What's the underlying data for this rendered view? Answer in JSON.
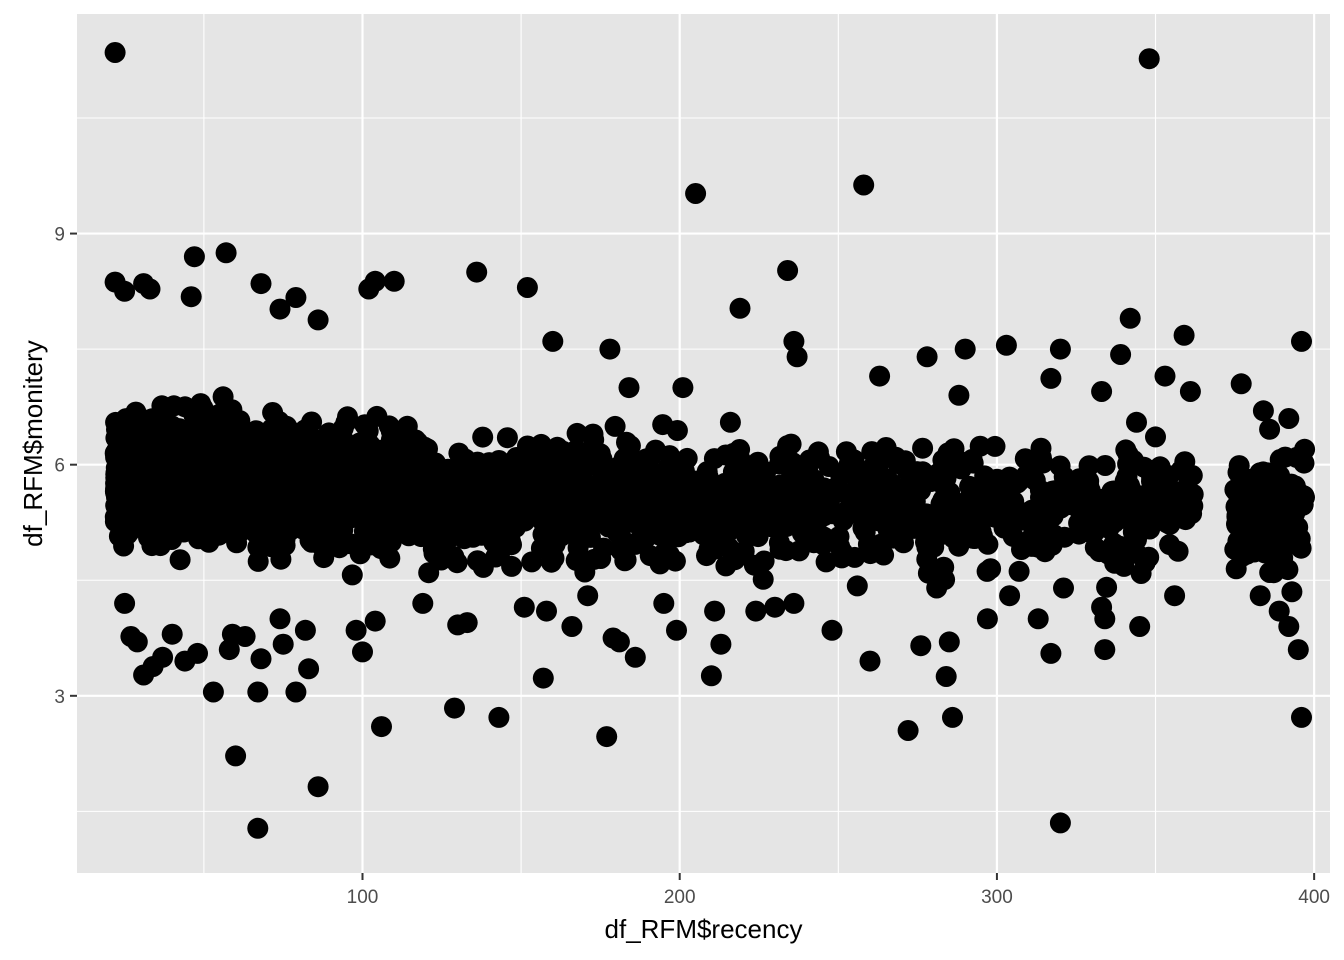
{
  "chart_data": {
    "type": "scatter",
    "title": "",
    "xlabel": "df_RFM$recency",
    "ylabel": "df_RFM$monitery",
    "xlim": [
      10,
      405
    ],
    "ylim": [
      0.7,
      11.85
    ],
    "x_ticks": [
      100,
      200,
      300,
      400
    ],
    "y_ticks": [
      3,
      6,
      9
    ],
    "x_minor": [
      50,
      150,
      250,
      350
    ],
    "y_minor": [
      1.5,
      4.5,
      7.5,
      10.5
    ],
    "x_tick_labels": [
      "100",
      "200",
      "300",
      "400"
    ],
    "y_tick_labels": [
      "3",
      "6",
      "9"
    ],
    "grid": true,
    "point_color": "#000000",
    "panel_color": "#e5e5e5",
    "grid_color": "#ffffff",
    "series": [
      {
        "points": [
          [
            22,
            11.35
          ],
          [
            348,
            11.27
          ],
          [
            258,
            9.63
          ],
          [
            205,
            9.52
          ],
          [
            57,
            8.75
          ],
          [
            47,
            8.7
          ],
          [
            234,
            8.52
          ],
          [
            136,
            8.5
          ],
          [
            22,
            8.37
          ],
          [
            31,
            8.35
          ],
          [
            68,
            8.35
          ],
          [
            110,
            8.38
          ],
          [
            104,
            8.38
          ],
          [
            152,
            8.3
          ],
          [
            102,
            8.28
          ],
          [
            25,
            8.25
          ],
          [
            33,
            8.28
          ],
          [
            46,
            8.18
          ],
          [
            79,
            8.17
          ],
          [
            74,
            8.02
          ],
          [
            219,
            8.03
          ],
          [
            86,
            7.88
          ],
          [
            342,
            7.9
          ],
          [
            359,
            7.68
          ],
          [
            236,
            7.6
          ],
          [
            303,
            7.55
          ],
          [
            396,
            7.6
          ],
          [
            290,
            7.5
          ],
          [
            320,
            7.5
          ],
          [
            178,
            7.5
          ],
          [
            160,
            7.6
          ],
          [
            237,
            7.4
          ],
          [
            278,
            7.4
          ],
          [
            339,
            7.43
          ],
          [
            377,
            7.05
          ],
          [
            353,
            7.15
          ],
          [
            317,
            7.12
          ],
          [
            263,
            7.15
          ],
          [
            201,
            7.0
          ],
          [
            184,
            7.0
          ],
          [
            288,
            6.9
          ],
          [
            361,
            6.95
          ],
          [
            392,
            6.6
          ],
          [
            384,
            6.7
          ],
          [
            333,
            6.95
          ],
          [
            344,
            6.55
          ],
          [
            397,
            6.2
          ],
          [
            376,
            5.9
          ],
          [
            381,
            5.4
          ],
          [
            389,
            5.1
          ],
          [
            395,
            5.5
          ],
          [
            386,
            4.6
          ],
          [
            393,
            4.35
          ],
          [
            375,
            4.9
          ],
          [
            392,
            3.9
          ],
          [
            395,
            3.6
          ],
          [
            396,
            2.72
          ],
          [
            389,
            4.1
          ],
          [
            383,
            4.3
          ],
          [
            356,
            4.3
          ],
          [
            345,
            3.9
          ],
          [
            334,
            3.6
          ],
          [
            334,
            4.0
          ],
          [
            333,
            4.15
          ],
          [
            321,
            4.4
          ],
          [
            317,
            3.55
          ],
          [
            313,
            4.0
          ],
          [
            297,
            4.0
          ],
          [
            304,
            4.3
          ],
          [
            298,
            4.65
          ],
          [
            285,
            3.7
          ],
          [
            284,
            3.25
          ],
          [
            286,
            2.72
          ],
          [
            272,
            2.55
          ],
          [
            276,
            3.65
          ],
          [
            281,
            4.4
          ],
          [
            260,
            3.45
          ],
          [
            248,
            3.85
          ],
          [
            236,
            4.2
          ],
          [
            230,
            4.15
          ],
          [
            224,
            4.1
          ],
          [
            213,
            3.67
          ],
          [
            210,
            3.26
          ],
          [
            211,
            4.1
          ],
          [
            199,
            3.85
          ],
          [
            195,
            4.2
          ],
          [
            186,
            3.5
          ],
          [
            181,
            3.7
          ],
          [
            179,
            3.75
          ],
          [
            177,
            2.47
          ],
          [
            171,
            4.3
          ],
          [
            166,
            3.9
          ],
          [
            158,
            4.1
          ],
          [
            157,
            3.23
          ],
          [
            151,
            4.15
          ],
          [
            143,
            2.72
          ],
          [
            133,
            3.95
          ],
          [
            130,
            3.92
          ],
          [
            129,
            2.84
          ],
          [
            119,
            4.2
          ],
          [
            106,
            2.6
          ],
          [
            104,
            3.97
          ],
          [
            100,
            3.57
          ],
          [
            98,
            3.85
          ],
          [
            86,
            1.82
          ],
          [
            83,
            3.35
          ],
          [
            82,
            3.85
          ],
          [
            79,
            3.05
          ],
          [
            75,
            3.67
          ],
          [
            74,
            4.0
          ],
          [
            67,
            3.05
          ],
          [
            67,
            1.28
          ],
          [
            68,
            3.48
          ],
          [
            63,
            3.77
          ],
          [
            59,
            3.8
          ],
          [
            58,
            3.6
          ],
          [
            60,
            2.22
          ],
          [
            53,
            3.05
          ],
          [
            48,
            3.55
          ],
          [
            44,
            3.45
          ],
          [
            40,
            3.8
          ],
          [
            37,
            3.5
          ],
          [
            34,
            3.38
          ],
          [
            31,
            3.27
          ],
          [
            29,
            3.7
          ],
          [
            27,
            3.77
          ],
          [
            25,
            4.2
          ],
          [
            320,
            1.35
          ]
        ]
      }
    ]
  }
}
